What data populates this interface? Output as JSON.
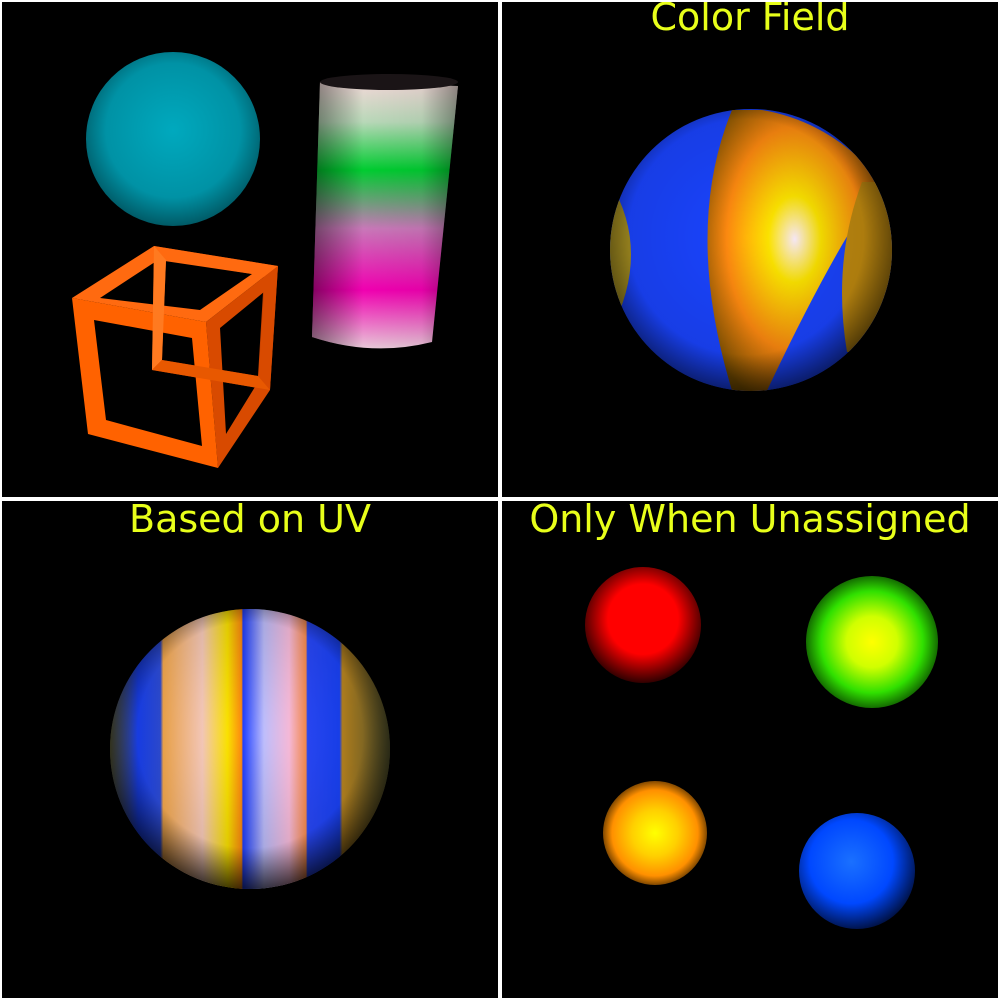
{
  "caption_color": "#e8ff1a",
  "panels": [
    {
      "caption": "",
      "objects": [
        {
          "name": "cyan-sphere",
          "color": "#009fb3"
        },
        {
          "name": "gradient-cylinder",
          "colors": [
            "#f5d8d8",
            "#00d12f",
            "#ff00c0"
          ]
        },
        {
          "name": "orange-wireframe-cube",
          "color": "#ff5a00"
        }
      ]
    },
    {
      "caption": "Color Field",
      "objects": [
        {
          "name": "color-field-sphere",
          "colors": [
            "#1a3cff",
            "#ffe600",
            "#ff7f00",
            "#ffd0ff"
          ]
        }
      ]
    },
    {
      "caption": "Based on UV",
      "objects": [
        {
          "name": "uv-striped-sphere",
          "colors": [
            "#1a3cff",
            "#ffe600",
            "#ff8a00",
            "#ffd0ff"
          ]
        }
      ]
    },
    {
      "caption": "Only When Unassigned",
      "objects": [
        {
          "name": "red-sphere",
          "color": "#ff0000"
        },
        {
          "name": "green-yellow-sphere",
          "color": "#3aff00"
        },
        {
          "name": "orange-yellow-sphere",
          "color": "#ff9a00"
        },
        {
          "name": "blue-sphere",
          "color": "#0050ff"
        }
      ]
    }
  ]
}
